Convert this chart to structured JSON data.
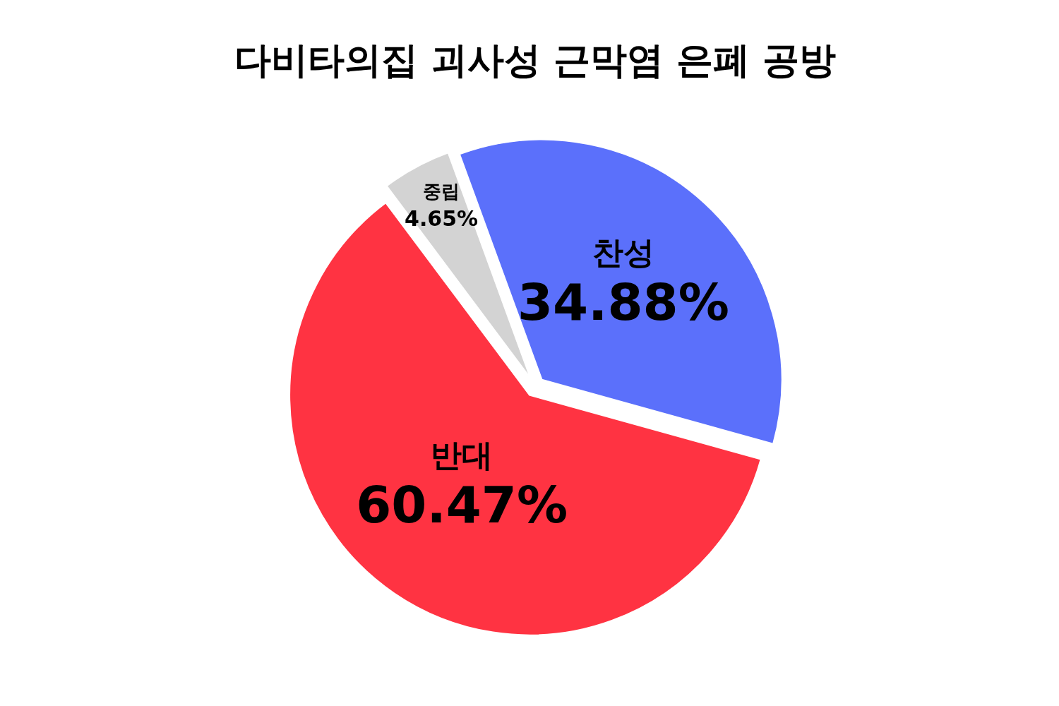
{
  "chart_data": {
    "type": "pie",
    "title": "다비타의집 괴사성 근막염 은폐 공방",
    "categories": [
      "찬성",
      "반대",
      "중립"
    ],
    "values": [
      34.88,
      60.47,
      4.65
    ],
    "value_labels": [
      "34.88%",
      "60.47%",
      "4.65%"
    ],
    "colors": [
      "#5b70fb",
      "#ff3342",
      "#d3d3d3"
    ]
  }
}
